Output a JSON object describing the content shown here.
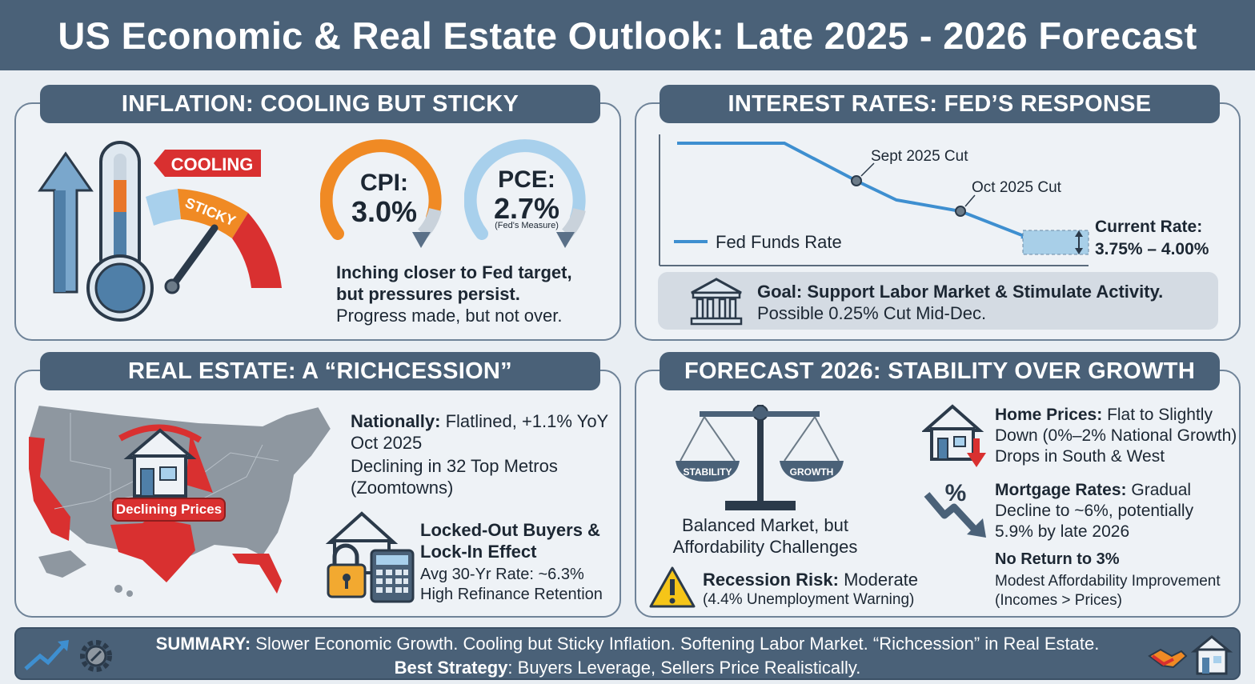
{
  "title": "US Economic & Real Estate Outlook: Late 2025 - 2026 Forecast",
  "inflation": {
    "heading": "INFLATION: COOLING BUT STICKY",
    "cooling_tag": "COOLING",
    "sticky_label": "STICKY",
    "cpi_label": "CPI:",
    "cpi_value": "3.0%",
    "pce_label": "PCE:",
    "pce_value": "2.7%",
    "pce_note": "(Fed's Measure)",
    "line1": "Inching closer to Fed target,",
    "line2": "but pressures persist.",
    "line3": "Progress made, but not over."
  },
  "rates": {
    "heading": "INTEREST RATES: FED’S RESPONSE",
    "cut1": "Sept 2025 Cut",
    "cut2": "Oct 2025 Cut",
    "legend": "Fed Funds Rate",
    "current_label": "Current Rate:",
    "current_value": "3.75% – 4.00%",
    "goal_bold": "Goal: Support Labor Market & Stimulate Activity.",
    "goal_text": "Possible 0.25% Cut Mid-Dec."
  },
  "real_estate": {
    "heading": "REAL ESTATE: A “RICHCESSION”",
    "declining_badge": "Declining Prices",
    "nationally_bold": "Nationally:",
    "nationally_text": " Flatlined, +1.1% YoY",
    "nationally_line2": "Oct 2025",
    "metros_line1": "Declining in 32 Top Metros",
    "metros_line2": "(Zoomtowns)",
    "locked_line1": "Locked-Out Buyers &",
    "locked_line2": "Lock-In Effect",
    "avg_rate": "Avg 30-Yr Rate: ~6.3%",
    "refi": "High Refinance Retention"
  },
  "forecast": {
    "heading": "FORECAST 2026: STABILITY OVER GROWTH",
    "stability": "STABILITY",
    "growth": "GROWTH",
    "balanced1": "Balanced Market, but",
    "balanced2": "Affordability Challenges",
    "recession_bold": "Recession Risk:",
    "recession_text": " Moderate",
    "recession_note": "(4.4% Unemployment Warning)",
    "home_bold": "Home Prices:",
    "home_text1": " Flat to Slightly",
    "home_text2": "Down (0%–2% National Growth)",
    "home_text3": "Drops in South & West",
    "mortgage_bold": "Mortgage Rates:",
    "mortgage_text1": " Gradual",
    "mortgage_text2": "Decline to ~6%, potentially",
    "mortgage_text3": "5.9% by late 2026",
    "no_return": "No Return to 3%",
    "modest1": "Modest Affordability Improvement",
    "modest2": "(Incomes > Prices)"
  },
  "summary": {
    "summary_bold": "SUMMARY:",
    "summary_text": " Slower Economic Growth. Cooling but Sticky Inflation. Softening Labor Market. “Richcession” in Real Estate.",
    "strategy_bold": "Best Strategy",
    "strategy_text": ": Buyers Leverage, Sellers Price Realistically."
  },
  "colors": {
    "header": "#4a6178",
    "red": "#d93030",
    "orange": "#f08a24",
    "light_blue": "#8ec5ea",
    "line_blue": "#3e8fd0"
  }
}
